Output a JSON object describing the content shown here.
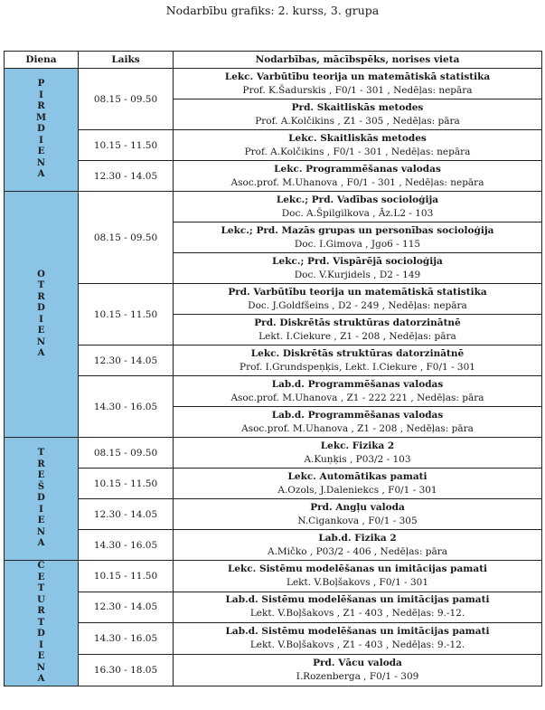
{
  "title": "Nodarbību grafiks: 2. kurss, 3. grupa",
  "headers": {
    "day": "Diena",
    "time": "Laiks",
    "lesson": "Nodarbības, mācībspēks, norises vieta"
  },
  "days": [
    {
      "name": "PIRMDIENA",
      "slots": [
        {
          "time": "08.15 - 09.50",
          "lessons": [
            {
              "subject": "Lekc. Varbūtību teorija un matemātiskā statistika",
              "details": "Prof. K.Šadurskis , F0/1 - 301 , Nedēļas: nepāra"
            },
            {
              "subject": "Prd. Skaitliskās metodes",
              "details": "Prof. A.Kolčikins , Z1 - 305 , Nedēļas: pāra"
            }
          ]
        },
        {
          "time": "10.15 - 11.50",
          "lessons": [
            {
              "subject": "Lekc. Skaitliskās metodes",
              "details": "Prof. A.Kolčikins , F0/1 - 301 , Nedēļas: nepāra"
            }
          ]
        },
        {
          "time": "12.30 - 14.05",
          "lessons": [
            {
              "subject": "Lekc. Programmēšanas valodas",
              "details": "Asoc.prof. M.Uhanova , F0/1 - 301 , Nedēļas: nepāra"
            }
          ]
        }
      ]
    },
    {
      "name": "OTRDIENA",
      "slots": [
        {
          "time": "08.15 - 09.50",
          "lessons": [
            {
              "subject": "Lekc.; Prd. Vadības socioloģija",
              "details": "Doc. A.Špilgilkova , Āz.L2 - 103"
            },
            {
              "subject": "Lekc.; Prd. Mazās grupas un personības socioloģija",
              "details": "Doc. I.Gimova , Jgo6 - 115"
            },
            {
              "subject": "Lekc.; Prd. Vispārējā socioloģija",
              "details": "Doc. V.Kurjidels , D2 - 149"
            }
          ]
        },
        {
          "time": "10.15 - 11.50",
          "lessons": [
            {
              "subject": "Prd. Varbūtību teorija un matemātiskā statistika",
              "details": "Doc. J.Goldfšeins , D2 - 249 , Nedēļas: nepāra"
            },
            {
              "subject": "Prd. Diskrētās struktūras datorzinātnē",
              "details": "Lekt. I.Ciekure , Z1 - 208 , Nedēļas: pāra"
            }
          ]
        },
        {
          "time": "12.30 - 14.05",
          "lessons": [
            {
              "subject": "Lekc. Diskrētās struktūras datorzinātnē",
              "details": "Prof. I.Grundspeņķis, Lekt. I.Ciekure , F0/1 - 301"
            }
          ]
        },
        {
          "time": "14.30 - 16.05",
          "lessons": [
            {
              "subject": "Lab.d. Programmēšanas valodas",
              "details": "Asoc.prof. M.Uhanova , Z1 - 222 221 , Nedēļas: pāra"
            },
            {
              "subject": "Lab.d. Programmēšanas valodas",
              "details": "Asoc.prof. M.Uhanova , Z1 - 208 , Nedēļas: pāra"
            }
          ]
        }
      ]
    },
    {
      "name": "TREŠDIENA",
      "slots": [
        {
          "time": "08.15 - 09.50",
          "lessons": [
            {
              "subject": "Lekc. Fizika 2",
              "details": "A.Kuņķis , P03/2 - 103"
            }
          ]
        },
        {
          "time": "10.15 - 11.50",
          "lessons": [
            {
              "subject": "Lekc. Automātikas pamati",
              "details": "A.Ozols, J.Daleniekcs , F0/1 - 301"
            }
          ]
        },
        {
          "time": "12.30 - 14.05",
          "lessons": [
            {
              "subject": "Prd. Angļu valoda",
              "details": "N.Cigankova , F0/1 - 305"
            }
          ]
        },
        {
          "time": "14.30 - 16.05",
          "lessons": [
            {
              "subject": "Lab.d. Fizika 2",
              "details": "A.Mičko , P03/2 - 406 , Nedēļas: pāra"
            }
          ]
        }
      ]
    },
    {
      "name": "CETURTDIENA",
      "slots": [
        {
          "time": "10.15 - 11.50",
          "lessons": [
            {
              "subject": "Lekc. Sistēmu modelēšanas un imitācijas pamati",
              "details": "Lekt. V.Boļšakovs , F0/1 - 301"
            }
          ]
        },
        {
          "time": "12.30 - 14.05",
          "lessons": [
            {
              "subject": "Lab.d. Sistēmu modelēšanas un imitācijas pamati",
              "details": "Lekt. V.Boļšakovs , Z1 - 403 , Nedēļas: 9.-12."
            }
          ]
        },
        {
          "time": "14.30 - 16.05",
          "lessons": [
            {
              "subject": "Lab.d. Sistēmu modelēšanas un imitācijas pamati",
              "details": "Lekt. V.Boļšakovs , Z1 - 403 , Nedēļas: 9.-12."
            }
          ]
        },
        {
          "time": "16.30 - 18.05",
          "lessons": [
            {
              "subject": "Prd. Vācu valoda",
              "details": "I.Rozenberga , F0/1 - 309"
            }
          ]
        }
      ]
    }
  ]
}
